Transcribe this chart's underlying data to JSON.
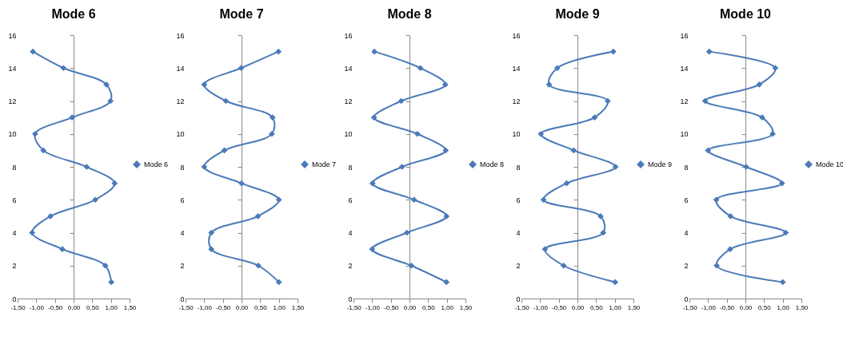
{
  "chart_data": [
    {
      "type": "line",
      "title": "Mode 6",
      "xlim": [
        -1.5,
        1.5
      ],
      "xticks": [
        {
          "value": -1.5,
          "label": "-1,50"
        },
        {
          "value": -1,
          "label": "-1,00"
        },
        {
          "value": -0.5,
          "label": "-0,50"
        },
        {
          "value": 0,
          "label": "0,00"
        },
        {
          "value": 0.5,
          "label": "0,50"
        },
        {
          "value": 1,
          "label": "1,00"
        },
        {
          "value": 1.5,
          "label": "1,50"
        }
      ],
      "ylim": [
        0,
        16
      ],
      "yticks": [
        0,
        2,
        4,
        6,
        8,
        10,
        12,
        14,
        16
      ],
      "legend": "right",
      "marker": "diamond",
      "series": [
        {
          "name": "Mode 6",
          "color": "#4a7ab8",
          "x": [
            1.01,
            0.85,
            -0.3,
            -1.11,
            -0.62,
            0.58,
            1.1,
            0.35,
            -0.81,
            -1.03,
            -0.04,
            0.99,
            0.88,
            -0.27,
            -1.09
          ],
          "values": [
            1,
            2,
            3,
            4,
            5,
            6,
            7,
            8,
            9,
            10,
            11,
            12,
            13,
            14,
            15
          ]
        }
      ]
    },
    {
      "type": "line",
      "title": "Mode 7",
      "xlim": [
        -1.5,
        1.5
      ],
      "xticks": [
        {
          "value": -1.5,
          "label": "-1,50"
        },
        {
          "value": -1,
          "label": "-1,00"
        },
        {
          "value": -0.5,
          "label": "-0,50"
        },
        {
          "value": 0,
          "label": "0,00"
        },
        {
          "value": 0.5,
          "label": "0,50"
        },
        {
          "value": 1,
          "label": "1,00"
        },
        {
          "value": 1.5,
          "label": "1,50"
        }
      ],
      "ylim": [
        0,
        16
      ],
      "yticks": [
        0,
        2,
        4,
        6,
        8,
        10,
        12,
        14,
        16
      ],
      "legend": "right",
      "marker": "diamond",
      "series": [
        {
          "name": "Mode 7",
          "color": "#4a7ab8",
          "x": [
            1.0,
            0.45,
            -0.81,
            -0.81,
            0.44,
            1.0,
            0,
            -1.0,
            -0.46,
            0.81,
            0.83,
            -0.42,
            -1.0,
            -0.01,
            0.99
          ],
          "values": [
            1,
            2,
            3,
            4,
            5,
            6,
            7,
            8,
            9,
            10,
            11,
            12,
            13,
            14,
            15
          ]
        }
      ]
    },
    {
      "type": "line",
      "title": "Mode 8",
      "xlim": [
        -1.5,
        1.5
      ],
      "xticks": [
        {
          "value": -1.5,
          "label": "-1,50"
        },
        {
          "value": -1,
          "label": "-1,00"
        },
        {
          "value": -0.5,
          "label": "-0,50"
        },
        {
          "value": 0,
          "label": "0,00"
        },
        {
          "value": 0.5,
          "label": "0,50"
        },
        {
          "value": 1,
          "label": "1,00"
        },
        {
          "value": 1.5,
          "label": "1,50"
        }
      ],
      "ylim": [
        0,
        16
      ],
      "yticks": [
        0,
        2,
        4,
        6,
        8,
        10,
        12,
        14,
        16
      ],
      "legend": "right",
      "marker": "diamond",
      "series": [
        {
          "name": "Mode 8",
          "color": "#4a7ab8",
          "x": [
            0.99,
            0.05,
            -1.0,
            -0.07,
            0.99,
            0.12,
            -0.99,
            -0.2,
            0.97,
            0.21,
            -0.95,
            -0.22,
            0.96,
            0.29,
            -0.94
          ],
          "values": [
            1,
            2,
            3,
            4,
            5,
            6,
            7,
            8,
            9,
            10,
            11,
            12,
            13,
            14,
            15
          ]
        }
      ]
    },
    {
      "type": "line",
      "title": "Mode 9",
      "xlim": [
        -1.5,
        1.5
      ],
      "xticks": [
        {
          "value": -1.5,
          "label": "-1,50"
        },
        {
          "value": -1,
          "label": "-1,00"
        },
        {
          "value": -0.5,
          "label": "-0,50"
        },
        {
          "value": 0,
          "label": "0,00"
        },
        {
          "value": 0.5,
          "label": "0,50"
        },
        {
          "value": 1,
          "label": "1,00"
        },
        {
          "value": 1.5,
          "label": "1,50"
        }
      ],
      "ylim": [
        0,
        16
      ],
      "yticks": [
        0,
        2,
        4,
        6,
        8,
        10,
        12,
        14,
        16
      ],
      "legend": "right",
      "marker": "diamond",
      "series": [
        {
          "name": "Mode 9",
          "color": "#4a7ab8",
          "x": [
            1.01,
            -0.37,
            -0.87,
            0.69,
            0.62,
            -0.91,
            -0.29,
            1.02,
            -0.1,
            -0.98,
            0.46,
            0.81,
            -0.76,
            -0.54,
            0.96
          ],
          "values": [
            1,
            2,
            3,
            4,
            5,
            6,
            7,
            8,
            9,
            10,
            11,
            12,
            13,
            14,
            15
          ]
        }
      ]
    },
    {
      "type": "line",
      "title": "Mode 10",
      "xlim": [
        -1.5,
        1.5
      ],
      "xticks": [
        {
          "value": -1.5,
          "label": "-1,50"
        },
        {
          "value": -1,
          "label": "-1,00"
        },
        {
          "value": -0.5,
          "label": "-0,50"
        },
        {
          "value": 0,
          "label": "0,00"
        },
        {
          "value": 0.5,
          "label": "0,50"
        },
        {
          "value": 1,
          "label": "1,00"
        },
        {
          "value": 1.5,
          "label": "1,50"
        }
      ],
      "ylim": [
        0,
        16
      ],
      "yticks": [
        0,
        2,
        4,
        6,
        8,
        10,
        12,
        14,
        16
      ],
      "legend": "right",
      "marker": "diamond",
      "series": [
        {
          "name": "Mode 10",
          "color": "#4a7ab8",
          "x": [
            1.0,
            -0.77,
            -0.41,
            1.08,
            -0.4,
            -0.78,
            0.98,
            0.02,
            -1.0,
            0.73,
            0.45,
            -1.08,
            0.37,
            0.8,
            -0.97
          ],
          "values": [
            1,
            2,
            3,
            4,
            5,
            6,
            7,
            8,
            9,
            10,
            11,
            12,
            13,
            14,
            15
          ]
        }
      ]
    }
  ]
}
